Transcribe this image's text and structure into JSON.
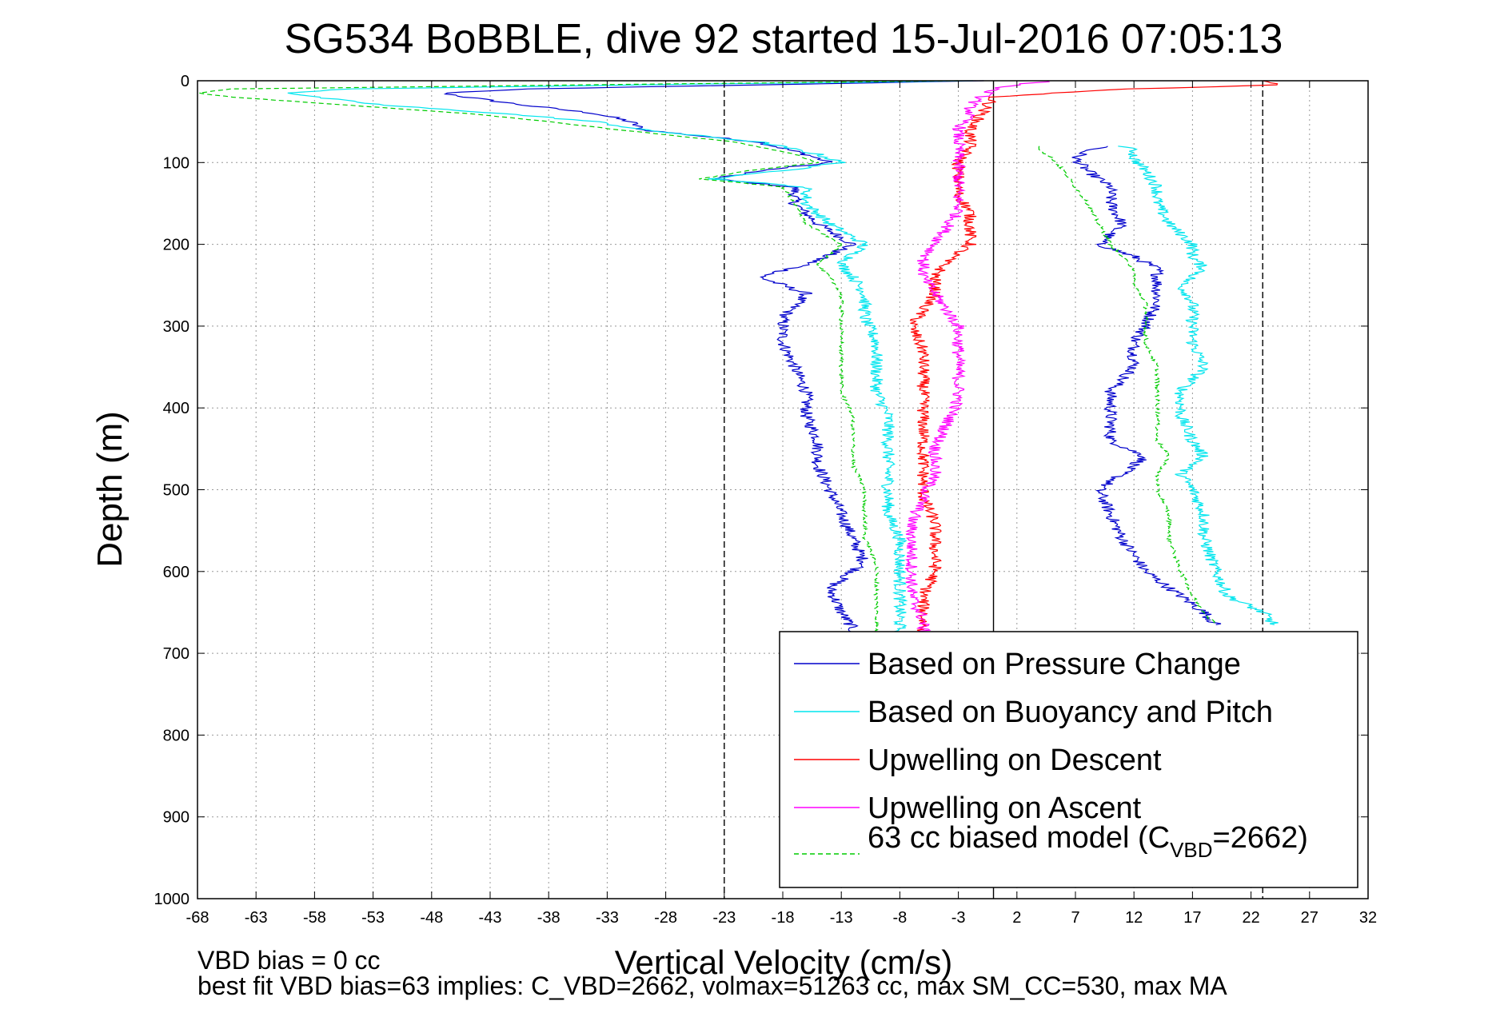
{
  "chart_data": {
    "type": "line",
    "title": "SG534 BoBBLE, dive 92 started 15-Jul-2016 07:05:13",
    "xlabel": "Vertical Velocity (cm/s)",
    "ylabel": "Depth (m)",
    "xlim": [
      -68,
      32
    ],
    "ylim": [
      0,
      1000
    ],
    "y_reversed": true,
    "grid": true,
    "x_ticks": [
      -68,
      -63,
      -58,
      -53,
      -48,
      -43,
      -38,
      -33,
      -28,
      -23,
      -18,
      -13,
      -8,
      -3,
      2,
      7,
      12,
      17,
      22,
      27,
      32
    ],
    "y_ticks": [
      0,
      100,
      200,
      300,
      400,
      500,
      600,
      700,
      800,
      900,
      1000
    ],
    "legend_placement": "bottom-right",
    "reference_lines": [
      {
        "x": -23,
        "color": "#000000",
        "dash": "8,4"
      },
      {
        "x": 0,
        "color": "#000000",
        "dash": "none"
      },
      {
        "x": 23,
        "color": "#000000",
        "dash": "8,4"
      }
    ],
    "series": [
      {
        "name": "Based on Pressure Change",
        "color": "#0000cc",
        "dash": "none",
        "segments": [
          {
            "depth": [
              0,
              5,
              10,
              15,
              20,
              30,
              40,
              50,
              60,
              75,
              90,
              100,
              110,
              120,
              130,
              150,
              175,
              200,
              225,
              240,
              260,
              290,
              320,
              350,
              380,
              410,
              440,
              470,
              500,
              530,
              560,
              590,
              620,
              650,
              670,
              680
            ],
            "velocity": [
              -1,
              -20,
              -40,
              -47,
              -45,
              -40,
              -34,
              -31,
              -30,
              -20,
              -16,
              -14,
              -20,
              -24,
              -17,
              -17,
              -15,
              -12,
              -16,
              -20,
              -16,
              -18,
              -18,
              -17,
              -16,
              -16,
              -15,
              -15,
              -14,
              -13,
              -12,
              -11,
              -14,
              -13,
              -12,
              -12
            ]
          },
          {
            "depth": [
              80,
              85,
              95,
              110,
              130,
              150,
              175,
              200,
              215,
              230,
              250,
              270,
              300,
              320,
              350,
              380,
              410,
              440,
              460,
              480,
              500,
              530,
              560,
              600,
              630,
              650,
              665
            ],
            "velocity": [
              10,
              8,
              7,
              8,
              10,
              10,
              11,
              9,
              12,
              14,
              14,
              14,
              13,
              12,
              12,
              10,
              10,
              10,
              13,
              11,
              9,
              10,
              11,
              13,
              16,
              18,
              19
            ]
          }
        ]
      },
      {
        "name": "Based on Buoyancy and Pitch",
        "color": "#00e5ee",
        "dash": "none",
        "segments": [
          {
            "depth": [
              0,
              5,
              10,
              15,
              20,
              30,
              40,
              50,
              60,
              75,
              90,
              100,
              110,
              120,
              130,
              150,
              175,
              200,
              225,
              240,
              260,
              290,
              320,
              350,
              380,
              410,
              440,
              470,
              500,
              530,
              560,
              590,
              620,
              650,
              670,
              680
            ],
            "velocity": [
              -2,
              -30,
              -55,
              -60,
              -58,
              -52,
              -42,
              -34,
              -30,
              -20,
              -15,
              -13,
              -18,
              -24,
              -16,
              -16,
              -14,
              -11,
              -13,
              -12,
              -11,
              -11,
              -10,
              -10,
              -10,
              -9,
              -9,
              -9,
              -9,
              -9,
              -8,
              -8,
              -8,
              -8,
              -8,
              -8
            ]
          },
          {
            "depth": [
              80,
              85,
              95,
              110,
              130,
              150,
              175,
              200,
              215,
              230,
              250,
              270,
              300,
              320,
              350,
              380,
              410,
              440,
              460,
              480,
              500,
              530,
              560,
              600,
              630,
              650,
              665
            ],
            "velocity": [
              11,
              12,
              12,
              13,
              14,
              14,
              15,
              17,
              17,
              18,
              16,
              17,
              17,
              17,
              18,
              16,
              16,
              17,
              18,
              16,
              17,
              18,
              18,
              19,
              20,
              23,
              24
            ]
          }
        ]
      },
      {
        "name": "Upwelling on Descent",
        "color": "#ff0000",
        "dash": "none",
        "segments": [
          {
            "depth": [
              0,
              5,
              10,
              15,
              20,
              40,
              60,
              80,
              100,
              120,
              140,
              160,
              180,
              200,
              220,
              240,
              260,
              280,
              300,
              330,
              360,
              390,
              420,
              450,
              480,
              510,
              540,
              570,
              600,
              630,
              660,
              680
            ],
            "velocity": [
              23,
              24,
              12,
              5,
              0,
              -1,
              -2,
              -2,
              -3,
              -3,
              -3,
              -2,
              -2,
              -2,
              -4,
              -5,
              -5,
              -6,
              -7,
              -6,
              -6,
              -6,
              -6,
              -6,
              -6,
              -6,
              -5,
              -5,
              -5,
              -6,
              -6,
              -6
            ]
          }
        ]
      },
      {
        "name": "Upwelling on Ascent",
        "color": "#ff00ff",
        "dash": "none",
        "segments": [
          {
            "depth": [
              0,
              5,
              10,
              20,
              30,
              40,
              60,
              80,
              100,
              120,
              140,
              160,
              180,
              200,
              220,
              240,
              260,
              280,
              300,
              330,
              360,
              390,
              420,
              450,
              480,
              510,
              540,
              570,
              600,
              630,
              660,
              680
            ],
            "velocity": [
              5,
              2,
              0,
              -1,
              -2,
              -2,
              -3,
              -3,
              -3,
              -3,
              -3,
              -3,
              -4,
              -5,
              -6,
              -6,
              -5,
              -4,
              -3,
              -3,
              -3,
              -3,
              -4,
              -5,
              -5,
              -6,
              -7,
              -7,
              -7,
              -7,
              -6,
              -6
            ]
          }
        ]
      },
      {
        "name": "63 cc biased model (C_VBD=2662)",
        "color": "#00cc00",
        "dash": "6,4",
        "segments": [
          {
            "depth": [
              0,
              5,
              10,
              15,
              20,
              30,
              40,
              50,
              60,
              75,
              90,
              100,
              110,
              120,
              130,
              150,
              175,
              200,
              225,
              240,
              260,
              290,
              320,
              350,
              380,
              410,
              440,
              470,
              500,
              530,
              560,
              590,
              620,
              650,
              670,
              680
            ],
            "velocity": [
              -3,
              -35,
              -65,
              -68,
              -65,
              -55,
              -45,
              -38,
              -32,
              -22,
              -17,
              -15,
              -21,
              -25,
              -18,
              -17,
              -16,
              -13,
              -15,
              -14,
              -13,
              -13,
              -13,
              -13,
              -13,
              -12,
              -12,
              -12,
              -11,
              -11,
              -11,
              -10,
              -10,
              -10,
              -10,
              -10
            ]
          },
          {
            "depth": [
              80,
              85,
              95,
              110,
              130,
              150,
              175,
              200,
              215,
              230,
              250,
              270,
              300,
              320,
              350,
              380,
              410,
              440,
              460,
              480,
              500,
              530,
              560,
              600,
              630,
              650,
              665
            ],
            "velocity": [
              4,
              4,
              5,
              6,
              7,
              8,
              9,
              10,
              11,
              12,
              12,
              13,
              13,
              13,
              14,
              14,
              14,
              14,
              15,
              14,
              14,
              15,
              15,
              16,
              17,
              18,
              19
            ]
          }
        ]
      }
    ]
  },
  "legend": {
    "entries": [
      "Based on Pressure Change",
      "Based on Buoyancy and Pitch",
      "Upwelling on Descent",
      "Upwelling on Ascent"
    ],
    "last_entry_prefix": "63 cc biased model (C",
    "last_entry_sub": "VBD",
    "last_entry_suffix": "=2662)"
  },
  "footer": {
    "line1": "VBD bias = 0 cc",
    "line2": "best fit VBD bias=63 implies: C_VBD=2662, volmax=51263 cc, max SM_CC=530, max MA"
  }
}
